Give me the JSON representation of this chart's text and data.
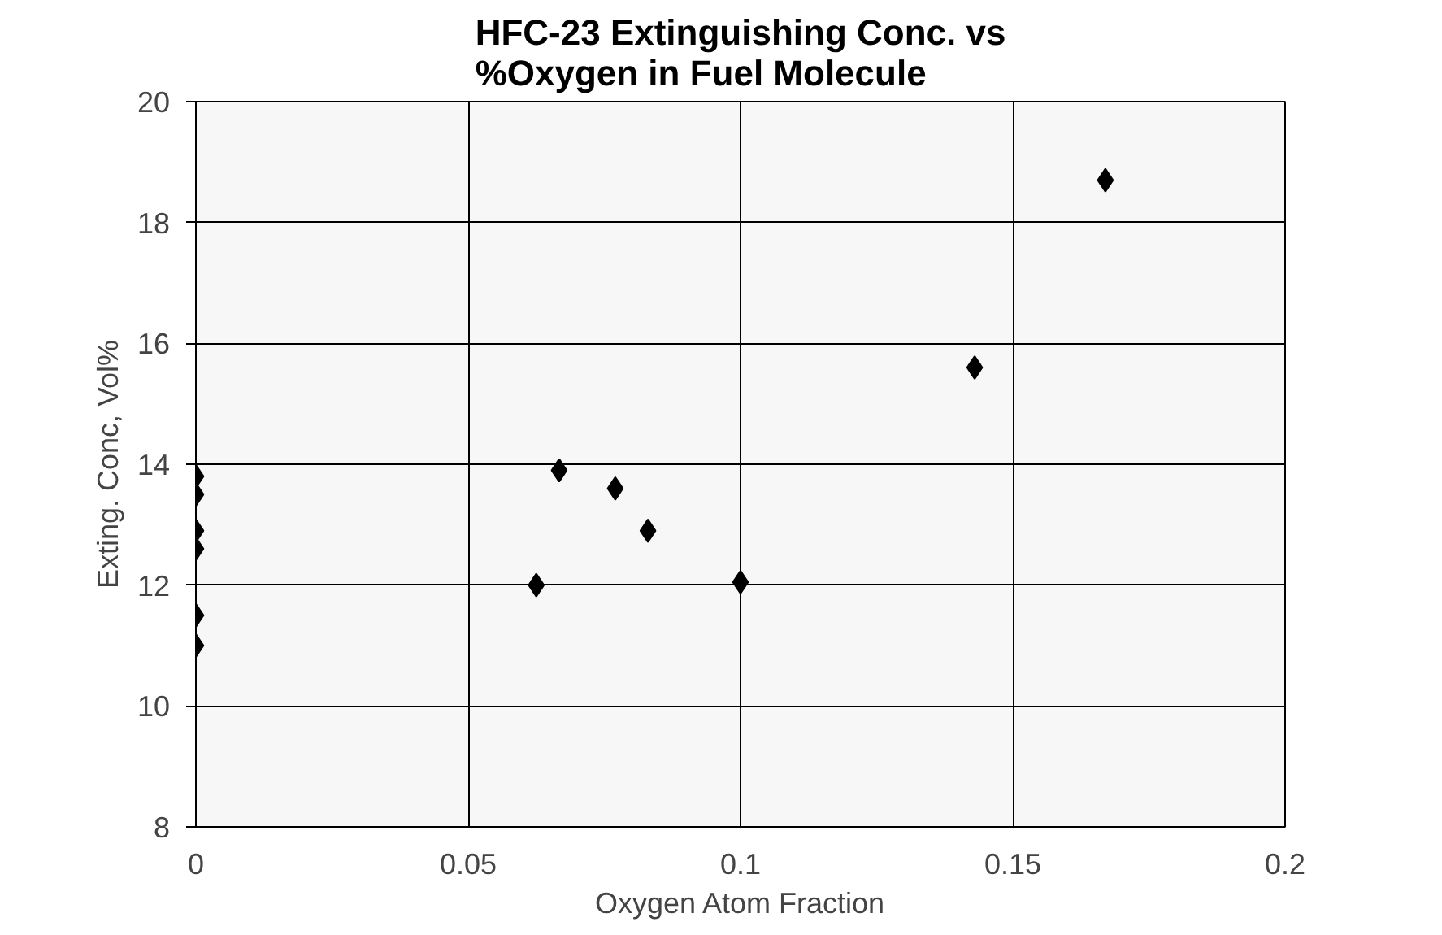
{
  "chart_data": {
    "type": "scatter",
    "title": "HFC-23 Extinguishing Conc. vs\n%Oxygen in Fuel Molecule",
    "xlabel": "Oxygen Atom Fraction",
    "ylabel": "Exting. Conc, Vol%",
    "x": [
      0,
      0,
      0,
      0,
      0,
      0,
      0.0625,
      0.0667,
      0.077,
      0.083,
      0.1,
      0.143,
      0.167
    ],
    "series": [
      {
        "color": "#000000",
        "values": [
          13.8,
          13.5,
          12.9,
          12.6,
          11.5,
          11.0,
          12.0,
          13.9,
          13.6,
          12.9,
          12.05,
          15.6,
          18.7
        ]
      }
    ],
    "xlim": [
      0,
      0.2
    ],
    "xticks": [
      0,
      0.05,
      0.1,
      0.15,
      0.2
    ],
    "ylim": [
      8,
      20
    ],
    "yticks": [
      8,
      10,
      12,
      14,
      16,
      18,
      20
    ],
    "grid": true,
    "marker": "diamond"
  }
}
